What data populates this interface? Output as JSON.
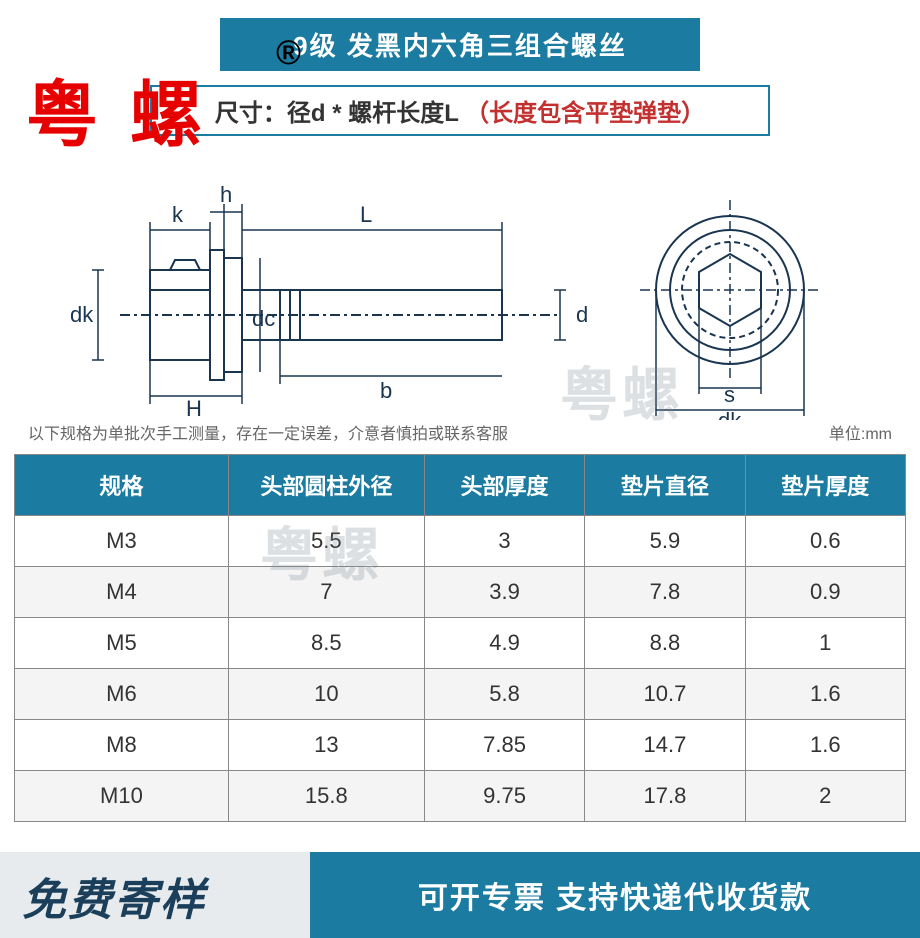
{
  "title_banner": "9级 发黑内六角三组合螺丝",
  "reg_mark": "®",
  "watermark_red": "粤 螺",
  "size_sub_black": "尺寸：径d * 螺杆长度L",
  "size_sub_red": "（长度包含平垫弹垫）",
  "diagram_labels": {
    "h": "h",
    "k": "k",
    "L": "L",
    "dk": "dk",
    "dc": "dc",
    "d": "d",
    "H": "H",
    "b": "b",
    "s": "s",
    "dk2": "dk"
  },
  "note_left": "以下规格为单批次手工测量，存在一定误差，介意者慎拍或联系客服",
  "note_right": "单位:mm",
  "table": {
    "columns": [
      "规格",
      "头部圆柱外径",
      "头部厚度",
      "垫片直径",
      "垫片厚度"
    ],
    "col_widths": [
      "24%",
      "22%",
      "18%",
      "18%",
      "18%"
    ],
    "rows": [
      [
        "M3",
        "5.5",
        "3",
        "5.9",
        "0.6"
      ],
      [
        "M4",
        "7",
        "3.9",
        "7.8",
        "0.9"
      ],
      [
        "M5",
        "8.5",
        "4.9",
        "8.8",
        "1"
      ],
      [
        "M6",
        "10",
        "5.8",
        "10.7",
        "1.6"
      ],
      [
        "M8",
        "13",
        "7.85",
        "14.7",
        "1.6"
      ],
      [
        "M10",
        "15.8",
        "9.75",
        "17.8",
        "2"
      ]
    ]
  },
  "footer_left": "免费寄样",
  "footer_right": "可开专票 支持快递代收货款",
  "watermark_gray": "粤螺",
  "colors": {
    "brand": "#1b7ba0",
    "red": "#e60000",
    "footer_left_bg": "#e8ebed",
    "footer_left_text": "#1b3f5a"
  }
}
